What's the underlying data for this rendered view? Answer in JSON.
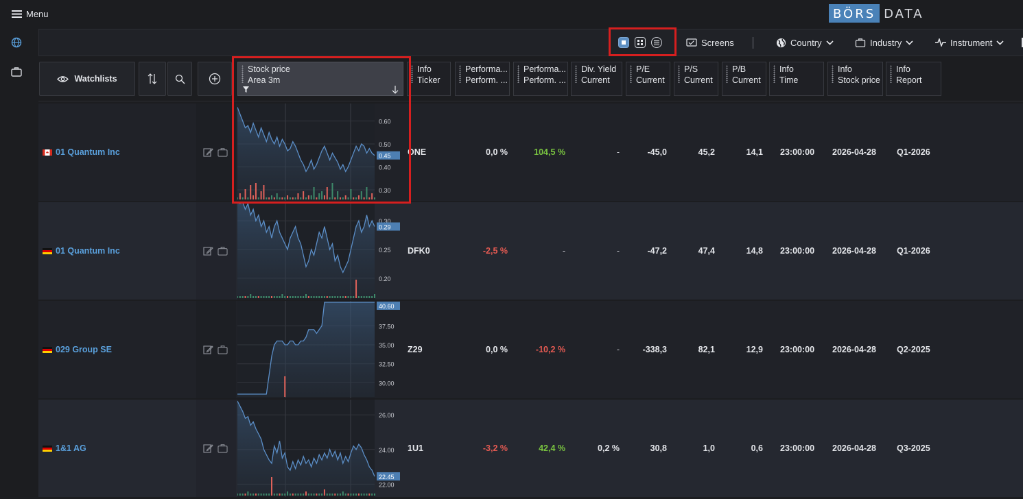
{
  "app": {
    "menu_label": "Menu",
    "logo_part1": "BÖRS",
    "logo_part2": "DATA"
  },
  "toolbar": {
    "screens_label": "Screens",
    "country_label": "Country",
    "industry_label": "Industry",
    "instrument_label": "Instrument"
  },
  "header": {
    "watchlists_label": "Watchlists",
    "columns": [
      {
        "line1": "Stock price",
        "line2": "Area 3m"
      },
      {
        "line1": "Info",
        "line2": "Ticker"
      },
      {
        "line1": "Performa...",
        "line2": "Perform. ..."
      },
      {
        "line1": "Performa...",
        "line2": "Perform. ..."
      },
      {
        "line1": "Div. Yield",
        "line2": "Current"
      },
      {
        "line1": "P/E",
        "line2": "Current"
      },
      {
        "line1": "P/S",
        "line2": "Current"
      },
      {
        "line1": "P/B",
        "line2": "Current"
      },
      {
        "line1": "Info",
        "line2": "Time"
      },
      {
        "line1": "Info",
        "line2": "Stock price"
      },
      {
        "line1": "Info",
        "line2": "Report"
      }
    ]
  },
  "colors": {
    "accent": "#5aa0dc",
    "positive": "#79c440",
    "negative": "#e45a52",
    "highlight": "#d61f1f",
    "chart_line": "#5b8ec7",
    "vol_up": "#3e8a6a",
    "vol_down": "#e0625a"
  },
  "rows": [
    {
      "flag": "canada",
      "name": "01 Quantum Inc",
      "ticker": "ONE",
      "perf1": "0,0 %",
      "perf2": "104,5 %",
      "div_yield": "-",
      "pe": "-45,0",
      "ps": "45,2",
      "pb": "14,1",
      "time": "23:00:00",
      "date": "2026-04-28",
      "report": "Q1-2026",
      "chart": {
        "ticks": [
          "0.60",
          "0.50",
          "0.40",
          "0.30"
        ],
        "tick_values": [
          0.6,
          0.5,
          0.4,
          0.3
        ],
        "last_label": "0.45",
        "last_value": 0.45,
        "ymin": 0.27,
        "ymax": 0.67,
        "prices": [
          0.66,
          0.63,
          0.6,
          0.57,
          0.58,
          0.55,
          0.59,
          0.56,
          0.53,
          0.57,
          0.54,
          0.51,
          0.55,
          0.52,
          0.5,
          0.53,
          0.49,
          0.52,
          0.5,
          0.47,
          0.48,
          0.51,
          0.49,
          0.46,
          0.43,
          0.41,
          0.38,
          0.4,
          0.43,
          0.39,
          0.41,
          0.44,
          0.47,
          0.49,
          0.46,
          0.43,
          0.46,
          0.44,
          0.42,
          0.39,
          0.41,
          0.38,
          0.4,
          0.43,
          0.46,
          0.49,
          0.47,
          0.5,
          0.49,
          0.46,
          0.48,
          0.46,
          0.45
        ],
        "volume": [
          0.1,
          0.3,
          0.1,
          0.5,
          0.1,
          0.7,
          0.2,
          0.8,
          0.1,
          0.4,
          0.7,
          0.1,
          0.1,
          0.2,
          0.1,
          0.3,
          0.1,
          0.1,
          0.1,
          0.2,
          0.1,
          0.1,
          0.1,
          0.3,
          0.1,
          0.4,
          0.1,
          0.2,
          0.2,
          0.6,
          0.1,
          0.3,
          0.4,
          0.2,
          0.6,
          0.1,
          0.8,
          0.1,
          0.4,
          0.1,
          0.1,
          0.2,
          0.1,
          0.5,
          0.1,
          0.1,
          0.2,
          0.4,
          0.1,
          0.6,
          0.1,
          0.3,
          0.1
        ],
        "vol_dir": [
          1,
          0,
          1,
          0,
          1,
          0,
          0,
          0,
          1,
          0,
          0,
          1,
          0,
          1,
          0,
          1,
          1,
          0,
          1,
          0,
          1,
          0,
          1,
          0,
          1,
          0,
          1,
          0,
          1,
          1,
          0,
          1,
          1,
          0,
          0,
          1,
          1,
          0,
          1,
          0,
          1,
          0,
          1,
          1,
          0,
          1,
          0,
          1,
          0,
          1,
          0,
          0,
          1
        ]
      }
    },
    {
      "flag": "germany",
      "name": "01 Quantum Inc",
      "ticker": "DFK0",
      "perf1": "-2,5 %",
      "perf2": "-",
      "div_yield": "-",
      "pe": "-47,2",
      "ps": "47,4",
      "pb": "14,8",
      "time": "23:00:00",
      "date": "2026-04-28",
      "report": "Q1-2026",
      "chart": {
        "ticks": [
          "0.30",
          "0.25",
          "0.20"
        ],
        "tick_values": [
          0.3,
          0.25,
          0.2
        ],
        "last_label": "0.29",
        "last_value": 0.29,
        "ymin": 0.17,
        "ymax": 0.33,
        "prices": [
          0.34,
          0.33,
          0.34,
          0.32,
          0.33,
          0.31,
          0.32,
          0.3,
          0.31,
          0.29,
          0.3,
          0.28,
          0.29,
          0.27,
          0.29,
          0.3,
          0.28,
          0.27,
          0.26,
          0.25,
          0.27,
          0.28,
          0.29,
          0.27,
          0.26,
          0.24,
          0.22,
          0.23,
          0.25,
          0.24,
          0.26,
          0.28,
          0.27,
          0.29,
          0.27,
          0.25,
          0.26,
          0.23,
          0.24,
          0.22,
          0.21,
          0.22,
          0.23,
          0.25,
          0.27,
          0.29,
          0.3,
          0.28,
          0.29,
          0.31,
          0.29,
          0.3,
          0.29
        ],
        "volume": [
          0.1,
          0.1,
          0.1,
          0.1,
          0.1,
          0.2,
          0.1,
          0.1,
          0.1,
          0.1,
          0.1,
          0.1,
          0.1,
          0.1,
          0.1,
          0.1,
          0.1,
          0.2,
          0.1,
          0.1,
          0.1,
          0.1,
          0.1,
          0.1,
          0.1,
          0.1,
          0.2,
          0.1,
          0.1,
          0.1,
          0.1,
          0.1,
          0.1,
          0.1,
          0.1,
          0.1,
          0.1,
          0.1,
          0.1,
          0.1,
          0.1,
          0.1,
          0.1,
          0.1,
          0.1,
          0.9,
          0.1,
          0.1,
          0.1,
          0.1,
          0.1,
          0.1,
          0.2
        ],
        "vol_dir": [
          1,
          1,
          1,
          0,
          1,
          1,
          1,
          1,
          0,
          1,
          1,
          1,
          1,
          0,
          1,
          1,
          1,
          1,
          1,
          0,
          1,
          1,
          1,
          1,
          1,
          1,
          1,
          0,
          1,
          1,
          1,
          1,
          1,
          1,
          0,
          1,
          1,
          1,
          1,
          1,
          1,
          0,
          1,
          1,
          1,
          0,
          1,
          1,
          1,
          1,
          1,
          1,
          1
        ]
      }
    },
    {
      "flag": "germany",
      "name": "029 Group SE",
      "ticker": "Z29",
      "perf1": "0,0 %",
      "perf2": "-10,2 %",
      "div_yield": "-",
      "pe": "-338,3",
      "ps": "82,1",
      "pb": "12,9",
      "time": "23:00:00",
      "date": "2026-04-28",
      "report": "Q2-2025",
      "chart": {
        "ticks": [
          "37.50",
          "35.00",
          "32.50",
          "30.00"
        ],
        "tick_values": [
          37.5,
          35.0,
          32.5,
          30.0
        ],
        "last_label": "40.60",
        "last_value": 40.6,
        "ymin": 28.5,
        "ymax": 40.6,
        "prices": [
          28.5,
          28.5,
          28.5,
          28.5,
          28.5,
          28.5,
          28.5,
          28.5,
          28.5,
          28.5,
          28.5,
          28.5,
          31.0,
          33.5,
          35.0,
          35.5,
          35.5,
          35.5,
          35.0,
          35.0,
          35.5,
          35.5,
          35.0,
          35.0,
          35.5,
          35.5,
          36.0,
          37.0,
          37.0,
          37.0,
          36.5,
          37.0,
          37.5,
          40.6,
          40.6,
          40.6,
          40.6,
          40.6,
          40.6,
          40.6,
          40.6,
          40.6,
          40.6,
          40.6,
          40.6,
          40.6,
          40.6,
          40.6,
          40.6,
          40.6,
          40.6,
          40.6,
          40.6
        ],
        "volume": [
          0,
          0,
          0,
          0,
          0,
          0,
          0,
          0,
          0,
          0,
          0,
          0,
          0,
          0,
          0,
          0,
          0,
          0,
          1.0,
          0,
          0,
          0,
          0,
          0,
          0,
          0,
          0,
          0,
          0,
          0,
          0,
          0,
          0,
          0,
          0,
          0,
          0,
          0,
          0,
          0,
          0,
          0,
          0,
          0,
          0,
          0,
          0,
          0,
          0,
          0,
          0,
          0,
          0
        ],
        "vol_dir": [
          0,
          0,
          0,
          0,
          0,
          0,
          0,
          0,
          0,
          0,
          0,
          0,
          0,
          0,
          0,
          0,
          0,
          0,
          0,
          0,
          0,
          0,
          0,
          0,
          0,
          0,
          0,
          0,
          0,
          0,
          0,
          0,
          0,
          0,
          0,
          0,
          0,
          0,
          0,
          0,
          0,
          0,
          0,
          0,
          0,
          0,
          0,
          0,
          0,
          0,
          0,
          0,
          0
        ]
      }
    },
    {
      "flag": "germany",
      "name": "1&1 AG",
      "ticker": "1U1",
      "perf1": "-3,2 %",
      "perf2": "42,4 %",
      "div_yield": "0,2 %",
      "pe": "30,8",
      "ps": "1,0",
      "pb": "0,6",
      "time": "23:00:00",
      "date": "2026-04-28",
      "report": "Q3-2025",
      "chart": {
        "ticks": [
          "26.00",
          "24.00",
          "22.00"
        ],
        "tick_values": [
          26.0,
          24.0,
          22.0
        ],
        "last_label": "22.45",
        "last_value": 22.45,
        "ymin": 21.5,
        "ymax": 26.8,
        "prices": [
          26.8,
          26.5,
          26.2,
          25.8,
          25.9,
          25.4,
          25.6,
          25.2,
          24.9,
          24.6,
          24.0,
          23.7,
          23.4,
          23.2,
          24.2,
          23.8,
          24.5,
          23.5,
          23.8,
          23.0,
          22.8,
          23.3,
          22.9,
          23.4,
          23.1,
          23.6,
          23.2,
          23.4,
          23.0,
          23.5,
          23.2,
          23.7,
          23.4,
          23.8,
          23.5,
          24.0,
          23.6,
          23.9,
          23.4,
          23.8,
          23.2,
          23.6,
          23.3,
          23.8,
          24.2,
          24.0,
          24.3,
          24.1,
          23.7,
          23.4,
          23.0,
          22.8,
          22.45
        ],
        "volume": [
          0.1,
          0.1,
          0.1,
          0.1,
          0.2,
          0.1,
          0.1,
          0.1,
          0.1,
          0.1,
          0.1,
          0.1,
          0.1,
          0.9,
          0.1,
          0.1,
          0.1,
          0.1,
          0.1,
          0.2,
          0.1,
          0.1,
          0.1,
          0.1,
          0.1,
          0.1,
          0.2,
          0.1,
          0.1,
          0.1,
          0.1,
          0.1,
          0.1,
          0.3,
          0.1,
          0.1,
          0.1,
          0.1,
          0.1,
          0.1,
          0.2,
          0.1,
          0.1,
          0.1,
          0.1,
          0.1,
          0.1,
          0.1,
          0.1,
          0.1,
          0.1,
          0.1,
          0.1
        ],
        "vol_dir": [
          1,
          1,
          1,
          0,
          1,
          1,
          1,
          0,
          1,
          1,
          1,
          1,
          1,
          0,
          1,
          1,
          0,
          1,
          1,
          1,
          1,
          0,
          1,
          1,
          1,
          1,
          0,
          1,
          1,
          1,
          0,
          1,
          1,
          0,
          1,
          1,
          1,
          0,
          1,
          1,
          1,
          1,
          0,
          1,
          1,
          1,
          0,
          1,
          1,
          1,
          0,
          1,
          1
        ]
      }
    }
  ]
}
